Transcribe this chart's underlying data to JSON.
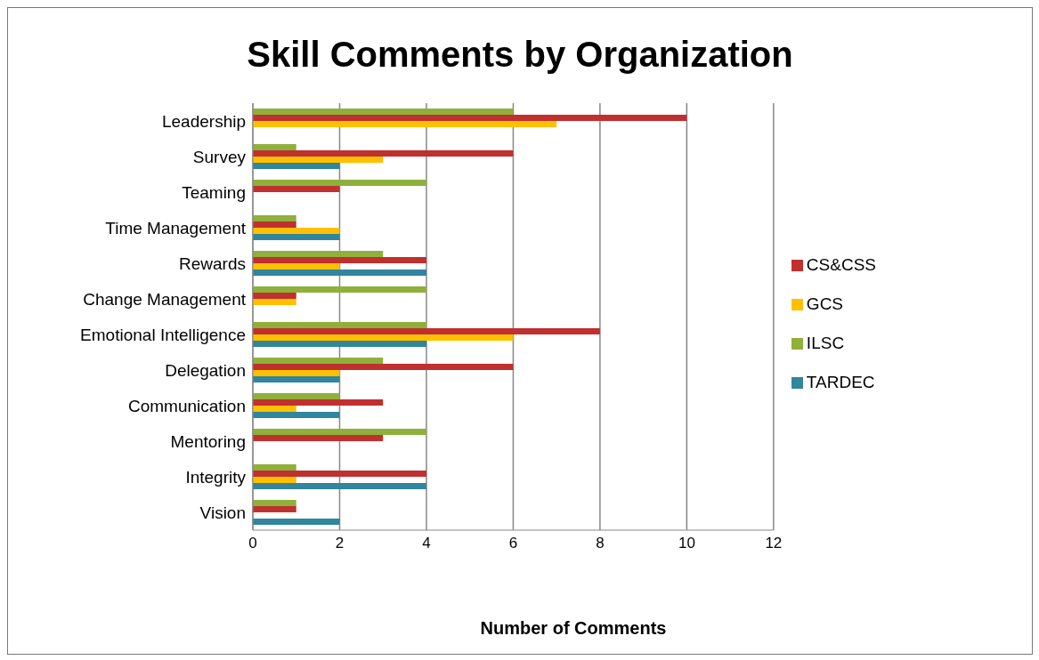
{
  "chart_data": {
    "type": "bar",
    "orientation": "horizontal",
    "title": "Skill Comments by Organization",
    "xlabel": "Number of Comments",
    "categories": [
      "Leadership",
      "Survey",
      "Teaming",
      "Time Management",
      "Rewards",
      "Change Management",
      "Emotional Intelligence",
      "Delegation",
      "Communication",
      "Mentoring",
      "Integrity",
      "Vision"
    ],
    "series": [
      {
        "name": "ILSC",
        "color": "#8fb03a",
        "values": [
          6,
          1,
          4,
          1,
          3,
          4,
          4,
          3,
          2,
          4,
          1,
          1
        ]
      },
      {
        "name": "CS&CSS",
        "color": "#c0302f",
        "values": [
          10,
          6,
          2,
          1,
          4,
          1,
          8,
          6,
          3,
          3,
          4,
          1
        ]
      },
      {
        "name": "GCS",
        "color": "#ffc000",
        "values": [
          7,
          3,
          null,
          2,
          2,
          1,
          6,
          2,
          1,
          null,
          1,
          null
        ]
      },
      {
        "name": "TARDEC",
        "color": "#31859c",
        "values": [
          null,
          2,
          null,
          2,
          4,
          null,
          4,
          2,
          2,
          null,
          4,
          2
        ]
      }
    ],
    "xlim": [
      0,
      12
    ],
    "xticks": [
      0,
      2,
      4,
      6,
      8,
      10,
      12
    ],
    "grid": "x",
    "legend": "right"
  }
}
